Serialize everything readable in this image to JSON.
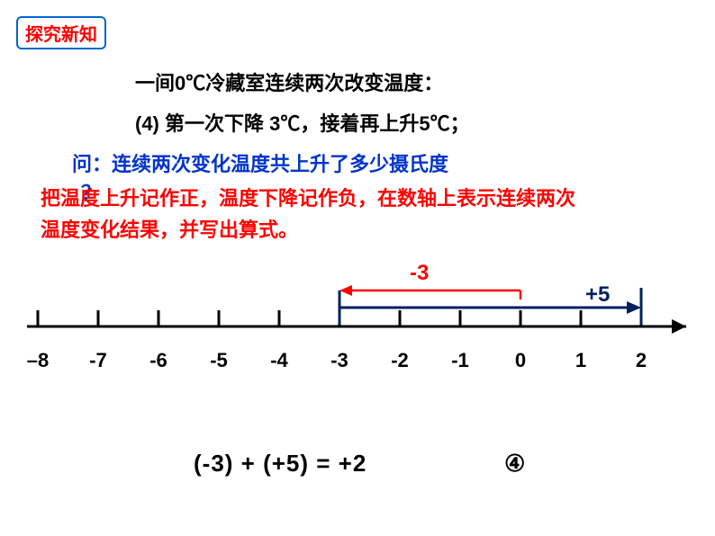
{
  "badge": "探究新知",
  "line1": "一间0℃冷藏室连续两次改变温度：",
  "line2": "(4)  第一次下降 3℃，接着再上升5℃；",
  "line3": "问：连续两次变化温度共上升了多少摄氏度",
  "line3b": "？",
  "line4_a": "  把温度上升记作正，温度下降记作负，在数轴上表示连续两次",
  "line4_b": "温度变化结果，并写出算式。",
  "arrows": {
    "neg3_label": "-3",
    "pos5_label": "+5"
  },
  "numberLine": {
    "start": -8,
    "end": 2,
    "spacing": 67,
    "offsetX": 12,
    "axisY": 55,
    "tickHeight": 18,
    "axisColor": "#000000",
    "axisWidth": 3,
    "labels": [
      "–8",
      "-7",
      "-6",
      "-5",
      "-4",
      "-3",
      "-2",
      "-1",
      "0",
      "1",
      "2"
    ],
    "redArrow": {
      "color": "#ff0000",
      "y": 15,
      "fromTick": 8,
      "toTick": 5,
      "strokeWidth": 2.5,
      "bracketHeight": 10
    },
    "blueArrow": {
      "color": "#002060",
      "y": 34,
      "fromTick": 5,
      "toTick": 10,
      "strokeWidth": 3,
      "bracketHeight": 28
    }
  },
  "equation": "(-3) + (+5) = +2",
  "circled": "④"
}
